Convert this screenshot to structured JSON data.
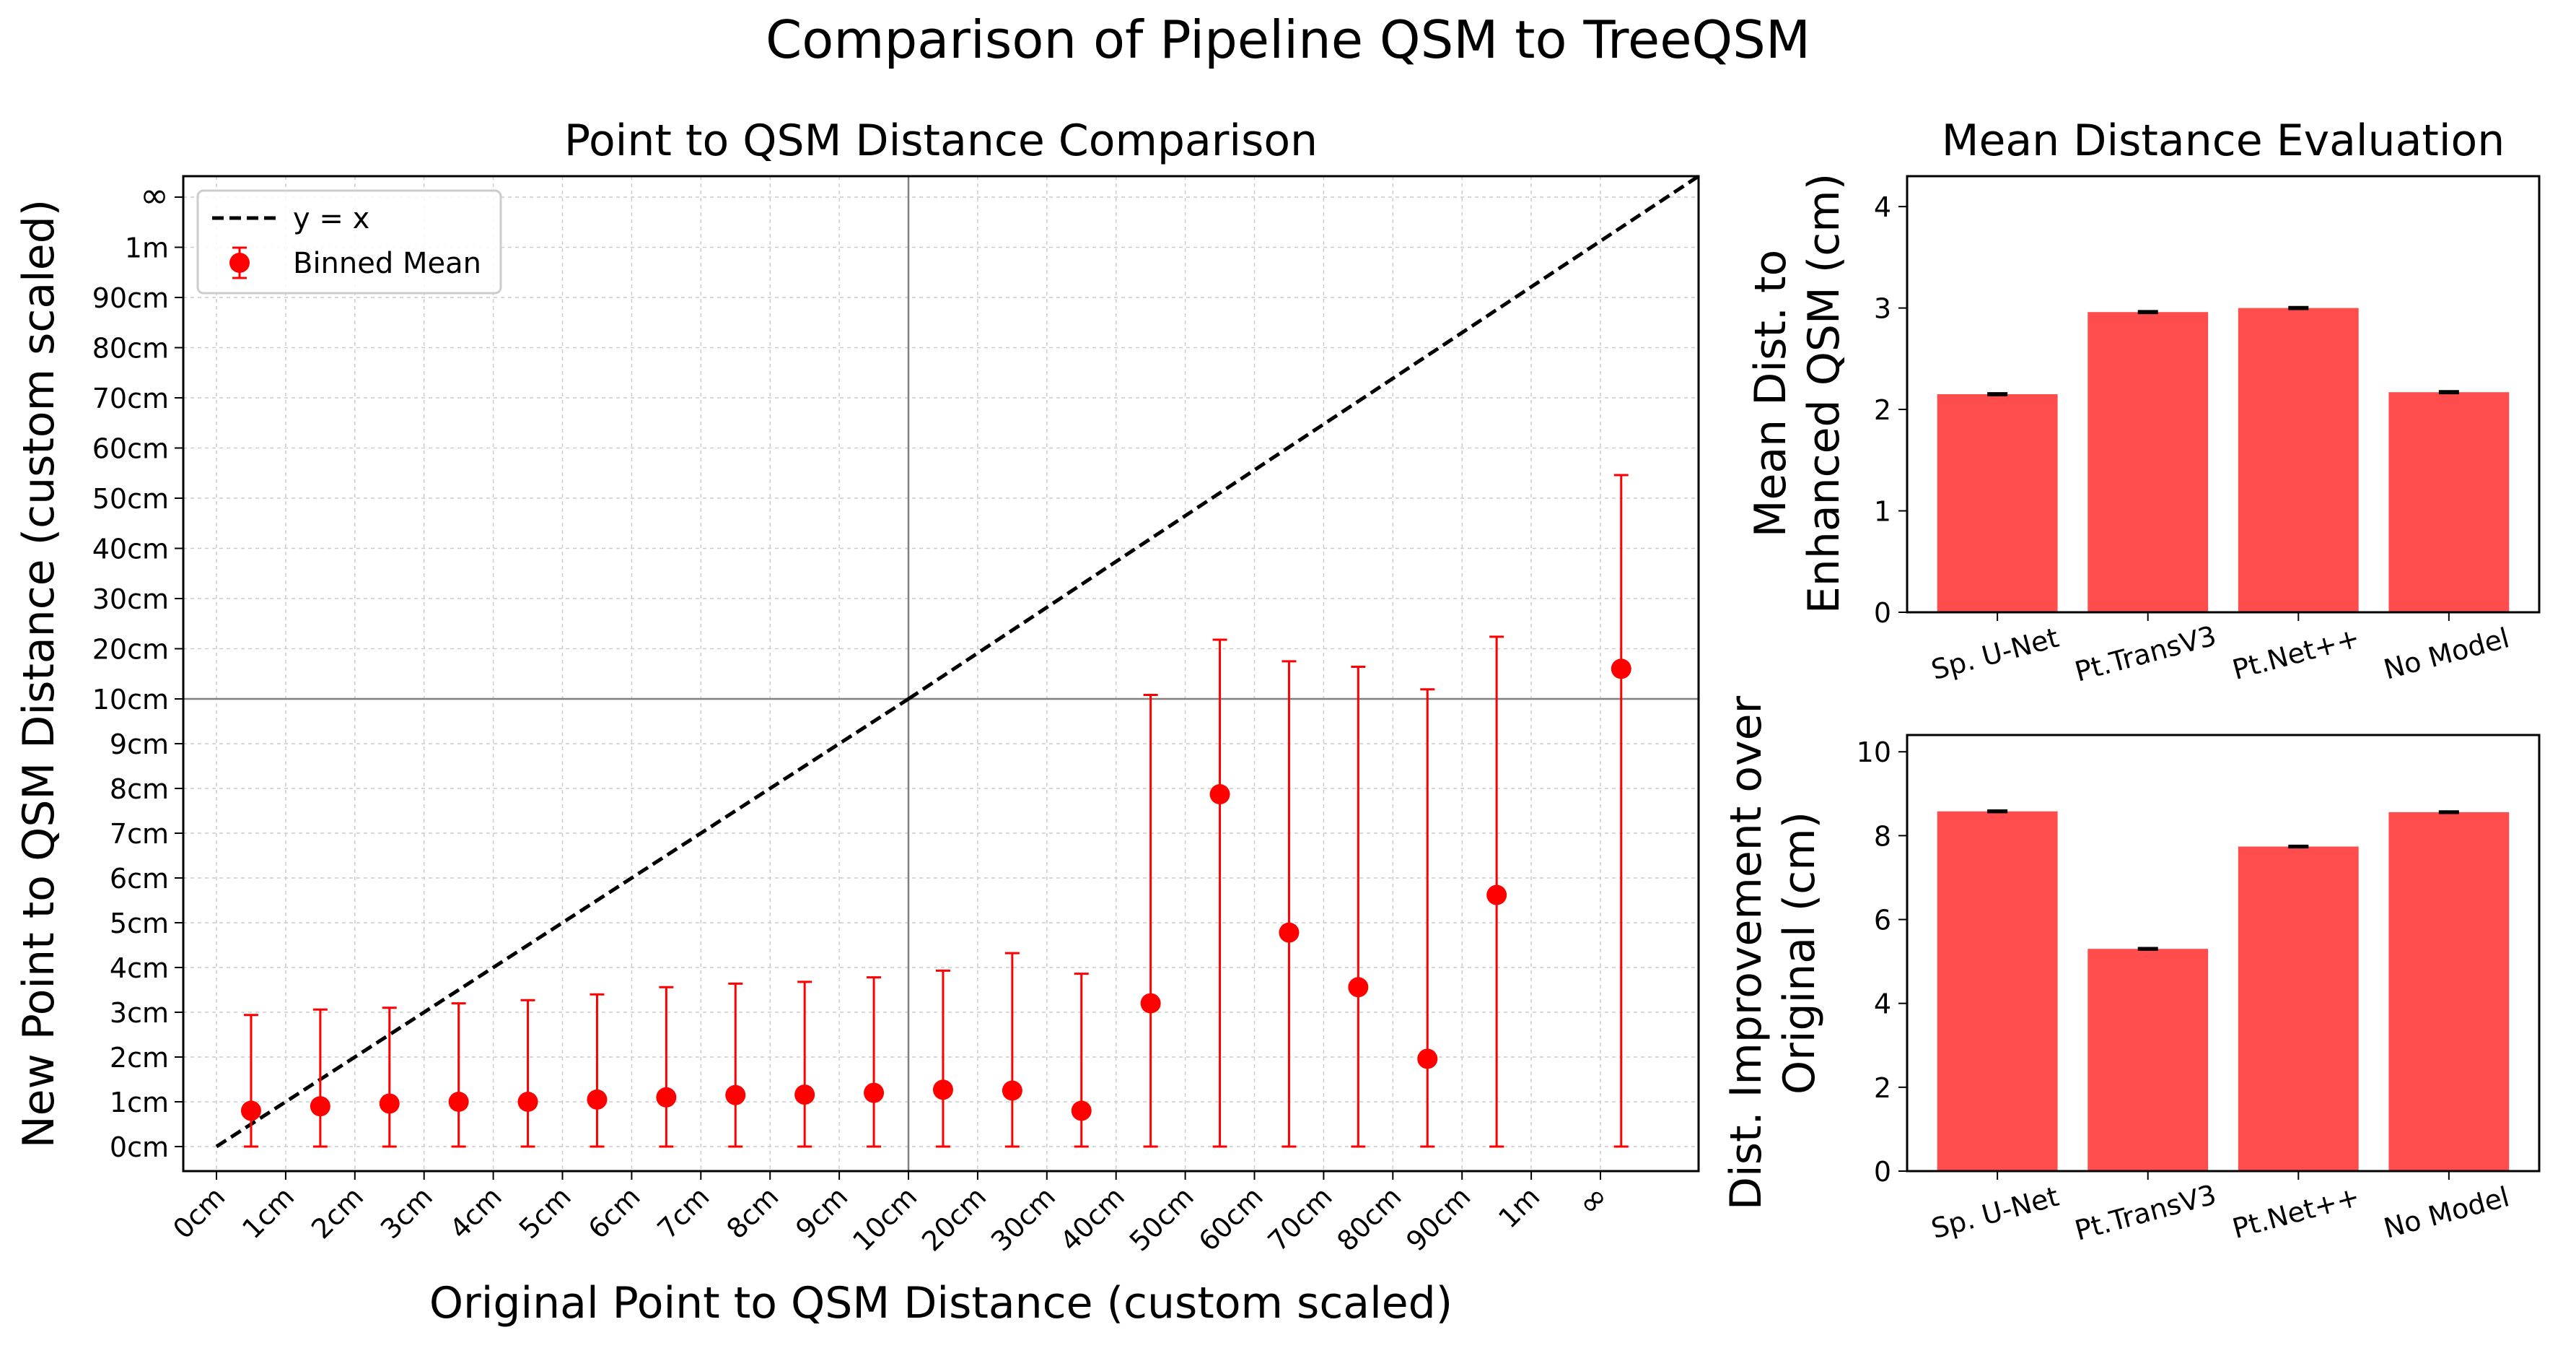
{
  "title": "Comparison of Pipeline QSM to TreeQSM",
  "colors": {
    "bar": "#ff4d4d",
    "marker": "#ff0000",
    "errorbar": "#ff0000",
    "diagonal": "#000000",
    "refline": "#808080",
    "grid": "#cccccc"
  },
  "chart_data": [
    {
      "type": "scatter",
      "title": "Point to QSM Distance Comparison",
      "xlabel": "Original Point to QSM Distance (custom scaled)",
      "ylabel": "New Point to QSM Distance (custom scaled)",
      "x_ticks": [
        "0cm",
        "1cm",
        "2cm",
        "3cm",
        "4cm",
        "5cm",
        "6cm",
        "7cm",
        "8cm",
        "9cm",
        "10cm",
        "20cm",
        "30cm",
        "40cm",
        "50cm",
        "60cm",
        "70cm",
        "80cm",
        "90cm",
        "1m",
        "∞"
      ],
      "y_ticks": [
        "0cm",
        "1cm",
        "2cm",
        "3cm",
        "4cm",
        "5cm",
        "6cm",
        "7cm",
        "8cm",
        "9cm",
        "10cm",
        "20cm",
        "30cm",
        "40cm",
        "50cm",
        "60cm",
        "70cm",
        "80cm",
        "90cm",
        "1m",
        "∞"
      ],
      "grid": true,
      "legend": {
        "position": "top-left",
        "entries": [
          "y = x",
          "Binned Mean"
        ]
      },
      "diagonal": {
        "name": "y = x",
        "style": "dashed"
      },
      "series": [
        {
          "name": "Binned Mean",
          "x": [
            "0.5cm",
            "1.5cm",
            "2.5cm",
            "3.5cm",
            "4.5cm",
            "5.5cm",
            "6.5cm",
            "7.5cm",
            "8.5cm",
            "9.5cm",
            "15cm",
            "25cm",
            "35cm",
            "45cm",
            "55cm",
            "65cm",
            "75cm",
            "85cm",
            "95cm",
            "∞"
          ],
          "y": [
            "1.8cm",
            "1.9cm",
            "2.0cm",
            "2.0cm",
            "2.0cm",
            "2.1cm",
            "2.1cm",
            "2.2cm",
            "2.2cm",
            "2.2cm",
            "2.3cm",
            "2.3cm",
            "1.8cm",
            "4.2cm",
            "8.9cm",
            "5.8cm",
            "4.6cm",
            "3.0cm",
            "6.6cm",
            "16cm"
          ],
          "err_low": [
            "0cm",
            "0cm",
            "0cm",
            "0cm",
            "0cm",
            "0cm",
            "0cm",
            "0cm",
            "0cm",
            "0cm",
            "0cm",
            "0cm",
            "0cm",
            "0cm",
            "0cm",
            "0cm",
            "0cm",
            "0cm",
            "0cm",
            "0cm"
          ],
          "err_high": [
            "3.9cm",
            "4.1cm",
            "4.1cm",
            "4.2cm",
            "4.3cm",
            "4.4cm",
            "4.6cm",
            "4.6cm",
            "4.7cm",
            "4.8cm",
            "4.9cm",
            "5.3cm",
            "4.9cm",
            "10.8cm",
            "21.8cm",
            "17.5cm",
            "16.5cm",
            "11.9cm",
            "22.4cm",
            "54.6cm"
          ],
          "tick_index": {
            "x": [
              0.5,
              1.5,
              2.5,
              3.5,
              4.5,
              5.5,
              6.5,
              7.5,
              8.5,
              9.5,
              10.5,
              11.5,
              12.5,
              13.5,
              14.5,
              15.5,
              16.5,
              17.5,
              18.5,
              20.3
            ],
            "y": [
              0.8,
              0.9,
              0.96,
              1.0,
              1.0,
              1.05,
              1.1,
              1.15,
              1.16,
              1.2,
              1.27,
              1.25,
              0.8,
              3.2,
              7.87,
              4.78,
              3.56,
              1.96,
              5.62,
              10.6
            ],
            "err_high": [
              2.94,
              3.06,
              3.1,
              3.2,
              3.27,
              3.4,
              3.56,
              3.64,
              3.68,
              3.78,
              3.93,
              4.32,
              3.86,
              10.08,
              11.18,
              10.75,
              10.64,
              10.19,
              11.24,
              14.46
            ]
          }
        }
      ]
    },
    {
      "type": "bar",
      "title": "Mean Distance Evaluation",
      "xlabel": "",
      "ylabel_lines": [
        "Mean Dist. to",
        "Enhanced QSM (cm)"
      ],
      "categories": [
        "Sp. U-Net",
        "Pt.TransV3",
        "Pt.Net++",
        "No Model"
      ],
      "values": [
        2.15,
        2.96,
        3.0,
        2.17
      ],
      "errors": [
        0.01,
        0.01,
        0.01,
        0.01
      ],
      "ylim": [
        0,
        4.3
      ],
      "y_ticks": [
        "0",
        "1",
        "2",
        "3",
        "4"
      ],
      "grid": false
    },
    {
      "type": "bar",
      "title": "",
      "xlabel": "",
      "ylabel_lines": [
        "Dist. Improvement over",
        "Original (cm)"
      ],
      "categories": [
        "Sp. U-Net",
        "Pt.TransV3",
        "Pt.Net++",
        "No Model"
      ],
      "values": [
        8.58,
        5.3,
        7.74,
        8.56
      ],
      "errors": [
        0.02,
        0.02,
        0.02,
        0.02
      ],
      "ylim": [
        0,
        10.4
      ],
      "y_ticks": [
        "0",
        "2",
        "4",
        "6",
        "8",
        "10"
      ],
      "grid": false
    }
  ]
}
